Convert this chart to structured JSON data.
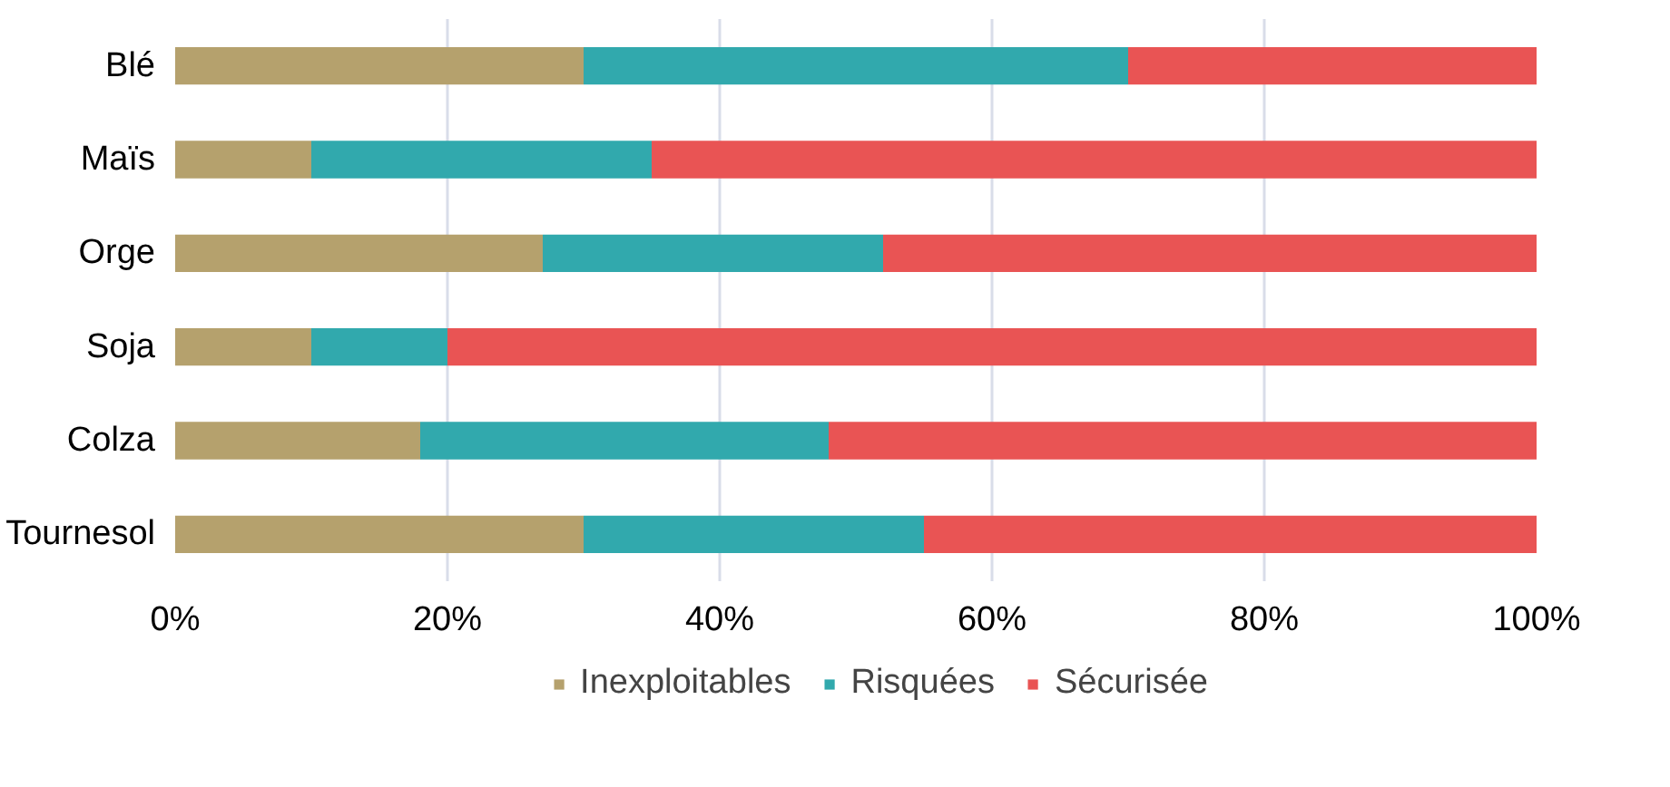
{
  "chart_data": {
    "type": "bar",
    "orientation": "horizontal",
    "stacked": true,
    "categories": [
      "Blé",
      "Maïs",
      "Orge",
      "Soja",
      "Colza",
      "Tournesol"
    ],
    "series": [
      {
        "name": "Inexploitables",
        "color": "#b5a16d",
        "values": [
          30,
          10,
          27,
          10,
          18,
          30
        ]
      },
      {
        "name": "Risquées",
        "color": "#31a9ad",
        "values": [
          40,
          25,
          25,
          10,
          30,
          25
        ]
      },
      {
        "name": "Sécurisée",
        "color": "#e95454",
        "values": [
          30,
          65,
          48,
          80,
          52,
          45
        ]
      }
    ],
    "xlim": [
      0,
      100
    ],
    "xticks": [
      {
        "value": 0,
        "label": "0%"
      },
      {
        "value": 20,
        "label": "20%"
      },
      {
        "value": 40,
        "label": "40%"
      },
      {
        "value": 60,
        "label": "60%"
      },
      {
        "value": 80,
        "label": "80%"
      },
      {
        "value": 100,
        "label": "100%"
      }
    ],
    "grid": "x",
    "legend": "bottom"
  }
}
